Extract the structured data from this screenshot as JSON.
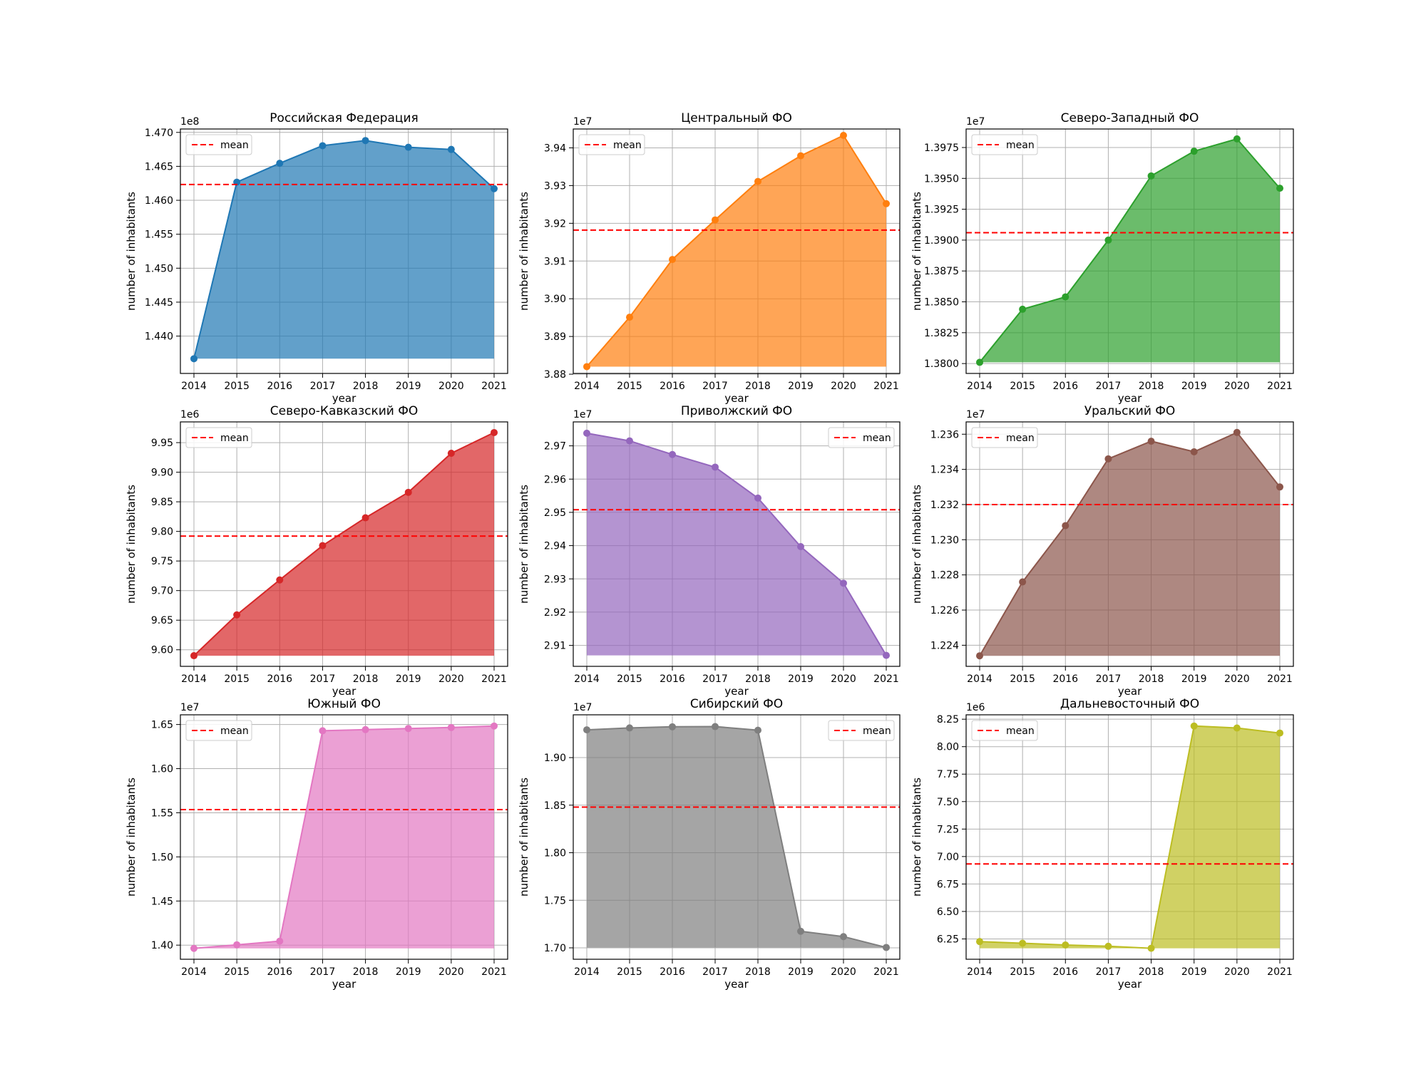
{
  "window": {
    "title": ""
  },
  "chart_data": [
    {
      "type": "area",
      "title": "Российская Федерация",
      "xlabel": "year",
      "ylabel": "number of inhabitants",
      "exponent_label": "1e8",
      "color": "#1f77b4",
      "x": [
        2014,
        2015,
        2016,
        2017,
        2018,
        2019,
        2020,
        2021
      ],
      "values": [
        143667000,
        146267000,
        146545000,
        146804000,
        146880000,
        146781000,
        146749000,
        146171000
      ],
      "mean": 146233000,
      "ylim": [
        143450000,
        147050000
      ],
      "yticks": [
        1.44,
        1.445,
        1.45,
        1.455,
        1.46,
        1.465,
        1.47
      ],
      "ytick_scale": 100000000,
      "ytick_decimals": 3,
      "legend": {
        "entries": [
          "mean"
        ],
        "placement": "upper left"
      },
      "grid": true
    },
    {
      "type": "area",
      "title": "Центральный ФО",
      "xlabel": "year",
      "ylabel": "number of inhabitants",
      "exponent_label": "1e7",
      "color": "#ff7f0e",
      "x": [
        2014,
        2015,
        2016,
        2017,
        2018,
        2019,
        2020,
        2021
      ],
      "values": [
        38820000,
        38951000,
        39104000,
        39209000,
        39311000,
        39379000,
        39433000,
        39252000
      ],
      "mean": 39182000,
      "ylim": [
        38802000,
        39450000
      ],
      "yticks": [
        3.88,
        3.89,
        3.9,
        3.91,
        3.92,
        3.93,
        3.94
      ],
      "ytick_scale": 10000000,
      "ytick_decimals": 2,
      "legend": {
        "entries": [
          "mean"
        ],
        "placement": "upper left"
      },
      "grid": true
    },
    {
      "type": "area",
      "title": "Северо-Западный ФО",
      "xlabel": "year",
      "ylabel": "number of inhabitants",
      "exponent_label": "1e7",
      "color": "#2ca02c",
      "x": [
        2014,
        2015,
        2016,
        2017,
        2018,
        2019,
        2020,
        2021
      ],
      "values": [
        13801000,
        13844000,
        13854000,
        13900000,
        13952000,
        13972000,
        13982000,
        13942000
      ],
      "mean": 13906000,
      "ylim": [
        13792000,
        13990000
      ],
      "yticks": [
        1.38,
        1.3825,
        1.385,
        1.3875,
        1.39,
        1.3925,
        1.395,
        1.3975
      ],
      "ytick_scale": 10000000,
      "ytick_decimals": 4,
      "legend": {
        "entries": [
          "mean"
        ],
        "placement": "upper left"
      },
      "grid": true
    },
    {
      "type": "area",
      "title": "Северо-Кавказский ФО",
      "xlabel": "year",
      "ylabel": "number of inhabitants",
      "exponent_label": "1e6",
      "color": "#d62728",
      "x": [
        2014,
        2015,
        2016,
        2017,
        2018,
        2019,
        2020,
        2021
      ],
      "values": [
        9590000,
        9659000,
        9718000,
        9776000,
        9823000,
        9866000,
        9932000,
        9967000
      ],
      "mean": 9792000,
      "ylim": [
        9572000,
        9985000
      ],
      "yticks": [
        9.6,
        9.65,
        9.7,
        9.75,
        9.8,
        9.85,
        9.9,
        9.95
      ],
      "ytick_scale": 1000000,
      "ytick_decimals": 2,
      "legend": {
        "entries": [
          "mean"
        ],
        "placement": "upper left"
      },
      "grid": true
    },
    {
      "type": "area",
      "title": "Приволжский ФО",
      "xlabel": "year",
      "ylabel": "number of inhabitants",
      "exponent_label": "1e7",
      "color": "#9467bd",
      "x": [
        2014,
        2015,
        2016,
        2017,
        2018,
        2019,
        2020,
        2021
      ],
      "values": [
        29738000,
        29715000,
        29674000,
        29636000,
        29543000,
        29397000,
        29287000,
        29070000
      ],
      "mean": 29508000,
      "ylim": [
        29037000,
        29772000
      ],
      "yticks": [
        2.91,
        2.92,
        2.93,
        2.94,
        2.95,
        2.96,
        2.97
      ],
      "ytick_scale": 10000000,
      "ytick_decimals": 2,
      "legend": {
        "entries": [
          "mean"
        ],
        "placement": "upper right"
      },
      "grid": true
    },
    {
      "type": "area",
      "title": "Уральский ФО",
      "xlabel": "year",
      "ylabel": "number of inhabitants",
      "exponent_label": "1e7",
      "color": "#8c564b",
      "x": [
        2014,
        2015,
        2016,
        2017,
        2018,
        2019,
        2020,
        2021
      ],
      "values": [
        12234000,
        12276000,
        12308000,
        12346000,
        12356000,
        12350000,
        12361000,
        12330000
      ],
      "mean": 12320000,
      "ylim": [
        12228000,
        12367000
      ],
      "yticks": [
        1.224,
        1.226,
        1.228,
        1.23,
        1.232,
        1.234,
        1.236
      ],
      "ytick_scale": 10000000,
      "ytick_decimals": 3,
      "legend": {
        "entries": [
          "mean"
        ],
        "placement": "upper left"
      },
      "grid": true
    },
    {
      "type": "area",
      "title": "Южный ФО",
      "xlabel": "year",
      "ylabel": "number of inhabitants",
      "exponent_label": "1e7",
      "color": "#e377c2",
      "x": [
        2014,
        2015,
        2016,
        2017,
        2018,
        2019,
        2020,
        2021
      ],
      "values": [
        13963000,
        14004000,
        14045000,
        16429000,
        16442000,
        16455000,
        16466000,
        16483000
      ],
      "mean": 15536000,
      "ylim": [
        13840000,
        16610000
      ],
      "yticks": [
        1.4,
        1.45,
        1.5,
        1.55,
        1.6,
        1.65
      ],
      "ytick_scale": 10000000,
      "ytick_decimals": 2,
      "legend": {
        "entries": [
          "mean"
        ],
        "placement": "upper left"
      },
      "grid": true
    },
    {
      "type": "area",
      "title": "Сибирский ФО",
      "xlabel": "year",
      "ylabel": "number of inhabitants",
      "exponent_label": "1e7",
      "color": "#7f7f7f",
      "x": [
        2014,
        2015,
        2016,
        2017,
        2018,
        2019,
        2020,
        2021
      ],
      "values": [
        19292000,
        19312000,
        19324000,
        19326000,
        19288000,
        17174000,
        17118000,
        17004000
      ],
      "mean": 18480000,
      "ylim": [
        16880000,
        19450000
      ],
      "yticks": [
        1.7,
        1.75,
        1.8,
        1.85,
        1.9
      ],
      "ytick_scale": 10000000,
      "ytick_decimals": 2,
      "legend": {
        "entries": [
          "mean"
        ],
        "placement": "upper right"
      },
      "grid": true
    },
    {
      "type": "area",
      "title": "Дальневосточный ФО",
      "xlabel": "year",
      "ylabel": "number of inhabitants",
      "exponent_label": "1e6",
      "color": "#bcbd22",
      "x": [
        2014,
        2015,
        2016,
        2017,
        2018,
        2019,
        2020,
        2021
      ],
      "values": [
        6226000,
        6211000,
        6195000,
        6183000,
        6165000,
        8188000,
        8170000,
        8124000
      ],
      "mean": 6933000,
      "ylim": [
        6065000,
        8290000
      ],
      "yticks": [
        6.25,
        6.5,
        6.75,
        7.0,
        7.25,
        7.5,
        7.75,
        8.0,
        8.25
      ],
      "ytick_scale": 1000000,
      "ytick_decimals": 2,
      "legend": {
        "entries": [
          "mean"
        ],
        "placement": "upper left"
      },
      "grid": true
    }
  ]
}
